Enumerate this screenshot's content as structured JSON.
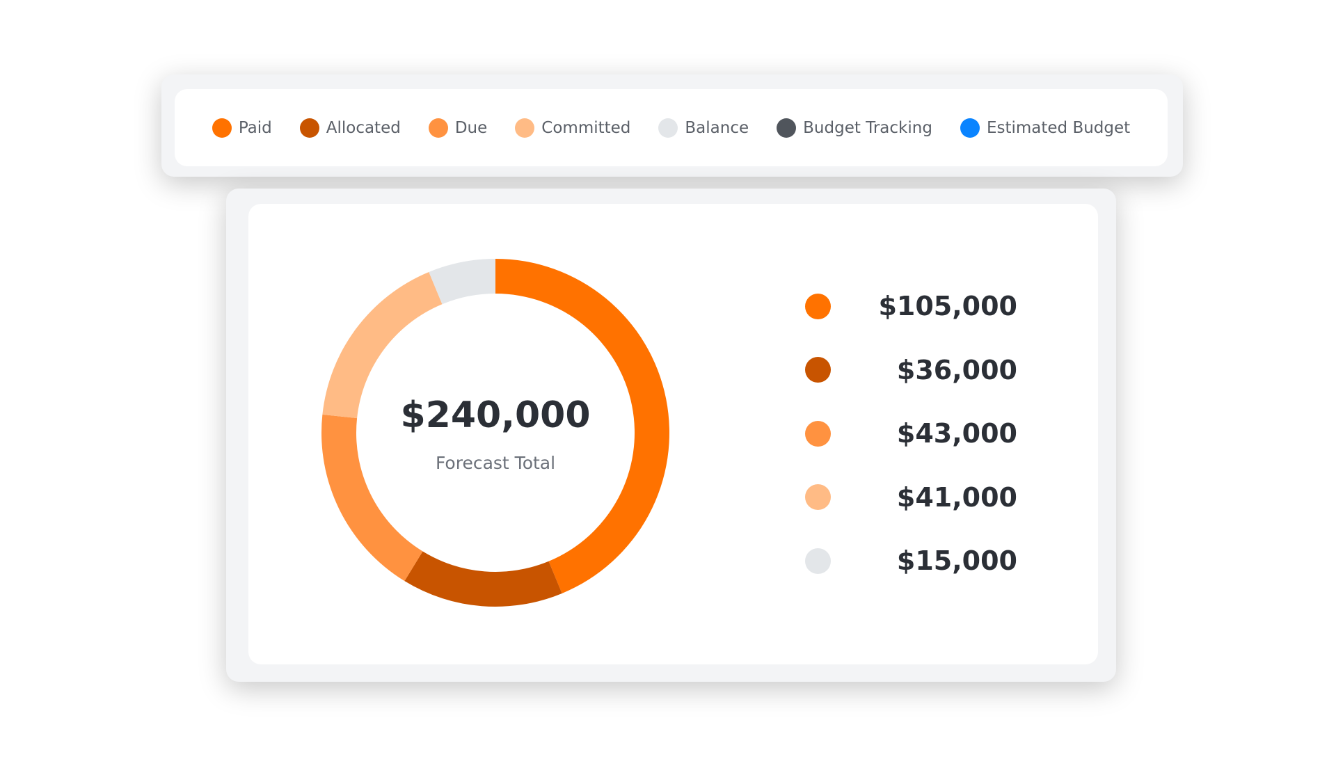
{
  "chart_data": {
    "type": "donut",
    "legend": [
      {
        "name": "Paid",
        "color": "#ff7200"
      },
      {
        "name": "Allocated",
        "color": "#c85400"
      },
      {
        "name": "Due",
        "color": "#ff9240"
      },
      {
        "name": "Committed",
        "color": "#ffbb85"
      },
      {
        "name": "Balance",
        "color": "#e3e6e9"
      },
      {
        "name": "Budget Tracking",
        "color": "#50555c"
      },
      {
        "name": "Estimated Budget",
        "color": "#0a84ff"
      }
    ],
    "values": [
      105000,
      36000,
      43000,
      41000,
      15000
    ],
    "value_labels": [
      "$105,000",
      "$36,000",
      "$43,000",
      "$41,000",
      "$15,000"
    ],
    "colors": [
      "#ff7200",
      "#c85400",
      "#ff9240",
      "#ffbb85",
      "#e3e6e9"
    ],
    "total": 240000,
    "total_label": "$240,000",
    "subtitle": "Forecast Total"
  }
}
